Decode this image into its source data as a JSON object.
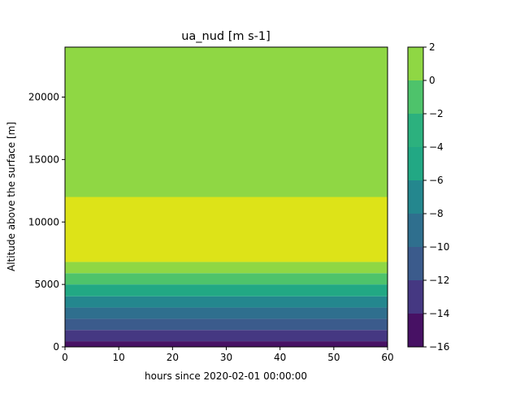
{
  "chart_data": {
    "type": "heatmap",
    "title": "ua_nud [m s-1]",
    "xlabel": "hours since 2020-02-01 00:00:00",
    "ylabel": "Altitude above the surface [m]",
    "xlim": [
      0,
      60
    ],
    "ylim": [
      0,
      24000
    ],
    "xticks": [
      "0",
      "10",
      "20",
      "30",
      "40",
      "50",
      "60"
    ],
    "yticks": [
      "0",
      "5000",
      "10000",
      "15000",
      "20000"
    ],
    "colorbar": {
      "levels": [
        -16,
        -14,
        -12,
        -10,
        -8,
        -6,
        -4,
        -2,
        0,
        2
      ],
      "tick_labels": [
        "−16",
        "−14",
        "−12",
        "−10",
        "−8",
        "−6",
        "−4",
        "−2",
        "0",
        "2"
      ],
      "colors": [
        "#471164",
        "#453882",
        "#3b5b8c",
        "#2f6f8e",
        "#24878e",
        "#22a884",
        "#2cb17e",
        "#4ec36b",
        "#8fd744",
        "#dde318"
      ]
    },
    "bands": [
      {
        "y0": 0,
        "y1": 450,
        "level": "-16 to -14",
        "color": "#471164"
      },
      {
        "y0": 450,
        "y1": 1350,
        "level": "-14 to -12",
        "color": "#453882"
      },
      {
        "y0": 1350,
        "y1": 2250,
        "level": "-12 to -10",
        "color": "#3b5b8c"
      },
      {
        "y0": 2250,
        "y1": 3150,
        "level": "-10 to -8",
        "color": "#2f6f8e"
      },
      {
        "y0": 3150,
        "y1": 4050,
        "level": "-8 to -6",
        "color": "#24878e"
      },
      {
        "y0": 4050,
        "y1": 5000,
        "level": "-6 to -4",
        "color": "#22a884"
      },
      {
        "y0": 5000,
        "y1": 5900,
        "level": "-4 to -2",
        "color": "#4ec36b"
      },
      {
        "y0": 5900,
        "y1": 6800,
        "level": "-2 to 0",
        "color": "#8fd744"
      },
      {
        "y0": 6800,
        "y1": 12000,
        "level": "0 to 2",
        "color": "#dde318"
      },
      {
        "y0": 12000,
        "y1": 24000,
        "level": "-2 to 0",
        "color": "#8fd744"
      }
    ]
  }
}
